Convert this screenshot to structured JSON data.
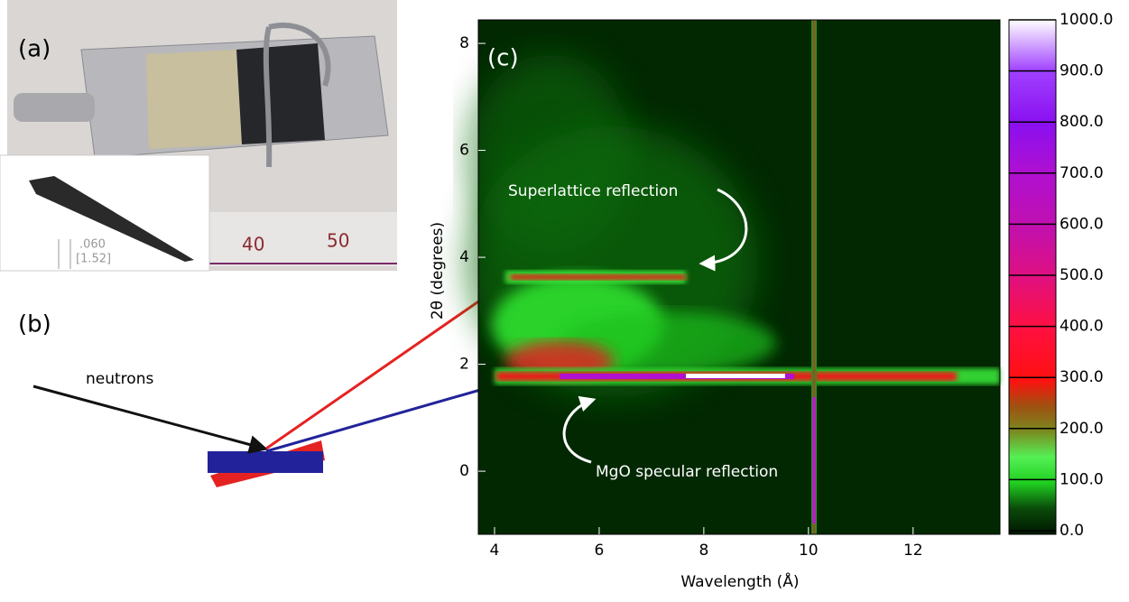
{
  "panels": {
    "a": {
      "label": "(a)",
      "dimension": ".060",
      "dimension_mm": "[1.52]",
      "ruler_marks": [
        "40",
        "50"
      ]
    },
    "b": {
      "label": "(b)",
      "beam": "neutrons"
    }
  },
  "chart_data": {
    "type": "heatmap",
    "panel_label": "(c)",
    "xlabel": "Wavelength (Å)",
    "ylabel": "2θ (degrees)",
    "xlim": [
      3.69,
      13.66
    ],
    "ylim": [
      -1.18,
      8.44
    ],
    "xticks": [
      4,
      6,
      8,
      10,
      12
    ],
    "yticks": [
      0,
      2,
      4,
      6,
      8
    ],
    "colorbar": {
      "clim": [
        0,
        1000
      ],
      "ticks": [
        {
          "value": 0,
          "label": "0.0"
        },
        {
          "value": 100,
          "label": "100.0"
        },
        {
          "value": 200,
          "label": "200.0"
        },
        {
          "value": 300,
          "label": "300.0"
        },
        {
          "value": 400,
          "label": "400.0"
        },
        {
          "value": 500,
          "label": "500.0"
        },
        {
          "value": 600,
          "label": "600.0"
        },
        {
          "value": 700,
          "label": "700.0"
        },
        {
          "value": 800,
          "label": "800.0"
        },
        {
          "value": 900,
          "label": "900.0"
        },
        {
          "value": 1000,
          "label": "1000.0"
        }
      ]
    },
    "annotations": [
      "Superlattice reflection",
      "MgO specular reflection"
    ]
  }
}
